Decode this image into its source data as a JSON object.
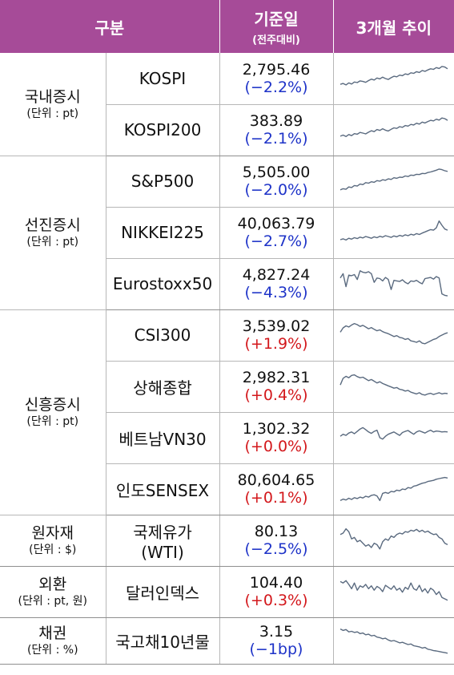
{
  "header": {
    "col1": "구분",
    "col2_main": "기준일",
    "col2_sub": "(전주대비)",
    "col3": "3개월 추이"
  },
  "groups": [
    {
      "title": "국내증시",
      "unit": "(단위 : pt)",
      "rows": [
        {
          "name": "KOSPI",
          "value": "2,795.46",
          "change": "(−2.2%)",
          "dir": "neg",
          "trend": [
            0.3,
            0.33,
            0.28,
            0.35,
            0.31,
            0.38,
            0.36,
            0.42,
            0.4,
            0.37,
            0.43,
            0.48,
            0.45,
            0.52,
            0.49,
            0.55,
            0.5,
            0.47,
            0.53,
            0.58,
            0.56,
            0.62,
            0.6,
            0.66,
            0.64,
            0.7,
            0.68,
            0.74,
            0.71,
            0.78,
            0.75,
            0.8,
            0.84,
            0.82,
            0.88,
            0.85,
            0.92,
            0.9,
            0.84
          ]
        },
        {
          "name": "KOSPI200",
          "value": "383.89",
          "change": "(−2.1%)",
          "dir": "neg",
          "trend": [
            0.28,
            0.32,
            0.27,
            0.34,
            0.3,
            0.37,
            0.35,
            0.41,
            0.39,
            0.36,
            0.42,
            0.47,
            0.44,
            0.51,
            0.48,
            0.54,
            0.49,
            0.46,
            0.52,
            0.57,
            0.55,
            0.61,
            0.59,
            0.65,
            0.63,
            0.69,
            0.67,
            0.73,
            0.7,
            0.77,
            0.74,
            0.79,
            0.83,
            0.81,
            0.87,
            0.84,
            0.91,
            0.89,
            0.83
          ]
        }
      ]
    },
    {
      "title": "선진증시",
      "unit": "(단위 : pt)",
      "rows": [
        {
          "name": "S&P500",
          "value": "5,505.00",
          "change": "(−2.0%)",
          "dir": "neg",
          "trend": [
            0.2,
            0.24,
            0.22,
            0.3,
            0.28,
            0.35,
            0.33,
            0.4,
            0.38,
            0.45,
            0.43,
            0.48,
            0.46,
            0.52,
            0.5,
            0.55,
            0.53,
            0.58,
            0.56,
            0.62,
            0.6,
            0.64,
            0.63,
            0.68,
            0.66,
            0.71,
            0.7,
            0.74,
            0.73,
            0.77,
            0.76,
            0.8,
            0.82,
            0.85,
            0.88,
            0.92,
            0.9,
            0.86,
            0.84
          ]
        },
        {
          "name": "NIKKEI225",
          "value": "40,063.79",
          "change": "(−2.7%)",
          "dir": "neg",
          "trend": [
            0.25,
            0.28,
            0.24,
            0.3,
            0.27,
            0.32,
            0.29,
            0.34,
            0.31,
            0.36,
            0.33,
            0.3,
            0.35,
            0.32,
            0.37,
            0.34,
            0.39,
            0.36,
            0.33,
            0.38,
            0.35,
            0.4,
            0.37,
            0.42,
            0.39,
            0.44,
            0.41,
            0.46,
            0.43,
            0.48,
            0.52,
            0.56,
            0.6,
            0.58,
            0.66,
            0.9,
            0.75,
            0.62,
            0.58
          ]
        },
        {
          "name": "Eurostoxx50",
          "value": "4,827.24",
          "change": "(−4.3%)",
          "dir": "neg",
          "trend": [
            0.7,
            0.85,
            0.4,
            0.8,
            0.78,
            0.82,
            0.65,
            0.95,
            0.9,
            0.88,
            0.92,
            0.85,
            0.55,
            0.7,
            0.68,
            0.6,
            0.72,
            0.65,
            0.3,
            0.62,
            0.6,
            0.58,
            0.64,
            0.55,
            0.5,
            0.6,
            0.58,
            0.62,
            0.55,
            0.5,
            0.68,
            0.7,
            0.72,
            0.66,
            0.75,
            0.7,
            0.15,
            0.1,
            0.08
          ]
        }
      ]
    },
    {
      "title": "신흥증시",
      "unit": "(단위 : pt)",
      "rows": [
        {
          "name": "CSI300",
          "value": "3,539.02",
          "change": "(+1.9%)",
          "dir": "pos",
          "trend": [
            0.6,
            0.75,
            0.82,
            0.78,
            0.85,
            0.9,
            0.86,
            0.8,
            0.84,
            0.78,
            0.72,
            0.76,
            0.7,
            0.65,
            0.68,
            0.62,
            0.58,
            0.55,
            0.5,
            0.45,
            0.48,
            0.42,
            0.4,
            0.35,
            0.38,
            0.3,
            0.28,
            0.25,
            0.3,
            0.22,
            0.2,
            0.25,
            0.3,
            0.35,
            0.38,
            0.45,
            0.5,
            0.55,
            0.58
          ]
        },
        {
          "name": "상해종합",
          "value": "2,982.31",
          "change": "(+0.4%)",
          "dir": "pos",
          "trend": [
            0.55,
            0.78,
            0.85,
            0.8,
            0.88,
            0.9,
            0.84,
            0.8,
            0.82,
            0.76,
            0.7,
            0.74,
            0.68,
            0.62,
            0.66,
            0.6,
            0.56,
            0.52,
            0.48,
            0.44,
            0.46,
            0.4,
            0.38,
            0.34,
            0.36,
            0.3,
            0.27,
            0.24,
            0.28,
            0.22,
            0.2,
            0.24,
            0.26,
            0.22,
            0.25,
            0.28,
            0.24,
            0.26,
            0.25
          ]
        },
        {
          "name": "베트남VN30",
          "value": "1,302.32",
          "change": "(+0.0%)",
          "dir": "pos",
          "trend": [
            0.55,
            0.62,
            0.58,
            0.66,
            0.7,
            0.64,
            0.72,
            0.8,
            0.85,
            0.78,
            0.7,
            0.65,
            0.72,
            0.76,
            0.5,
            0.45,
            0.55,
            0.62,
            0.66,
            0.7,
            0.64,
            0.58,
            0.68,
            0.72,
            0.75,
            0.68,
            0.62,
            0.7,
            0.74,
            0.7,
            0.66,
            0.72,
            0.76,
            0.7,
            0.73,
            0.72,
            0.7,
            0.71,
            0.7
          ]
        },
        {
          "name": "인도SENSEX",
          "value": "80,604.65",
          "change": "(+0.1%)",
          "dir": "pos",
          "trend": [
            0.1,
            0.15,
            0.12,
            0.18,
            0.14,
            0.2,
            0.17,
            0.22,
            0.19,
            0.25,
            0.22,
            0.28,
            0.3,
            0.26,
            0.1,
            0.35,
            0.38,
            0.35,
            0.42,
            0.4,
            0.46,
            0.44,
            0.5,
            0.48,
            0.55,
            0.53,
            0.6,
            0.62,
            0.66,
            0.7,
            0.72,
            0.76,
            0.78,
            0.8,
            0.84,
            0.86,
            0.88,
            0.9,
            0.88
          ]
        }
      ]
    },
    {
      "title": "원자재",
      "unit": "(단위 : $)",
      "rows": [
        {
          "name": "국제유가\n(WTI)",
          "value": "80.13",
          "change": "(−2.5%)",
          "dir": "neg",
          "trend": [
            0.7,
            0.75,
            0.9,
            0.8,
            0.55,
            0.6,
            0.45,
            0.5,
            0.4,
            0.3,
            0.35,
            0.25,
            0.4,
            0.35,
            0.2,
            0.45,
            0.55,
            0.5,
            0.65,
            0.6,
            0.7,
            0.75,
            0.72,
            0.8,
            0.78,
            0.85,
            0.82,
            0.88,
            0.8,
            0.85,
            0.78,
            0.82,
            0.75,
            0.7,
            0.72,
            0.6,
            0.55,
            0.4,
            0.35
          ]
        }
      ]
    },
    {
      "title": "외환",
      "unit": "(단위 : pt, 원)",
      "rows": [
        {
          "name": "달러인덱스",
          "value": "104.40",
          "change": "(+0.3%)",
          "dir": "pos",
          "trend": [
            0.85,
            0.8,
            0.88,
            0.75,
            0.6,
            0.8,
            0.55,
            0.7,
            0.65,
            0.75,
            0.6,
            0.7,
            0.55,
            0.68,
            0.62,
            0.5,
            0.72,
            0.65,
            0.58,
            0.7,
            0.55,
            0.62,
            0.48,
            0.65,
            0.58,
            0.8,
            0.6,
            0.55,
            0.72,
            0.5,
            0.6,
            0.45,
            0.62,
            0.55,
            0.4,
            0.5,
            0.3,
            0.25,
            0.2
          ]
        }
      ]
    },
    {
      "title": "채권",
      "unit": "(단위 : %)",
      "rows": [
        {
          "name": "국고채10년물",
          "value": "3.15",
          "change": "(−1bp)",
          "dir": "neg",
          "trend": [
            0.9,
            0.85,
            0.88,
            0.8,
            0.82,
            0.78,
            0.8,
            0.74,
            0.76,
            0.7,
            0.72,
            0.66,
            0.68,
            0.62,
            0.6,
            0.56,
            0.58,
            0.52,
            0.48,
            0.5,
            0.46,
            0.42,
            0.44,
            0.4,
            0.36,
            0.38,
            0.32,
            0.3,
            0.28,
            0.24,
            0.26,
            0.2,
            0.18,
            0.15,
            0.14,
            0.12,
            0.1,
            0.08,
            0.06
          ]
        }
      ]
    }
  ]
}
